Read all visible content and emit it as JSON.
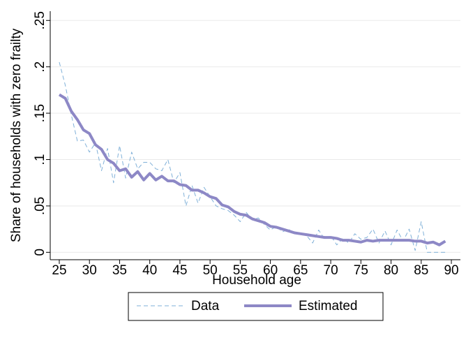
{
  "chart_data": {
    "type": "line",
    "x_label": "Household age",
    "y_label": "Share of households with zero frailty",
    "x": [
      25,
      26,
      27,
      28,
      29,
      30,
      31,
      32,
      33,
      34,
      35,
      36,
      37,
      38,
      39,
      40,
      41,
      42,
      43,
      44,
      45,
      46,
      47,
      48,
      49,
      50,
      51,
      52,
      53,
      54,
      55,
      56,
      57,
      58,
      59,
      60,
      61,
      62,
      63,
      64,
      65,
      66,
      67,
      68,
      69,
      70,
      71,
      72,
      73,
      74,
      75,
      76,
      77,
      78,
      79,
      80,
      81,
      82,
      83,
      84,
      85,
      86,
      87,
      88,
      89
    ],
    "series": [
      {
        "name": "Data",
        "color": "#7fb0d8",
        "dashed": true,
        "values": [
          0.205,
          0.18,
          0.148,
          0.12,
          0.121,
          0.108,
          0.118,
          0.088,
          0.112,
          0.075,
          0.115,
          0.08,
          0.108,
          0.09,
          0.097,
          0.097,
          0.09,
          0.088,
          0.1,
          0.075,
          0.086,
          0.05,
          0.072,
          0.053,
          0.07,
          0.06,
          0.05,
          0.047,
          0.045,
          0.04,
          0.033,
          0.043,
          0.035,
          0.037,
          0.03,
          0.024,
          0.028,
          0.022,
          0.025,
          0.02,
          0.02,
          0.018,
          0.01,
          0.024,
          0.014,
          0.018,
          0.008,
          0.015,
          0.01,
          0.02,
          0.014,
          0.016,
          0.025,
          0.01,
          0.023,
          0.008,
          0.024,
          0.012,
          0.025,
          0.002,
          0.033,
          0,
          0,
          0,
          0
        ]
      },
      {
        "name": "Estimated",
        "color": "#8d88c6",
        "dashed": false,
        "values": [
          0.17,
          0.166,
          0.152,
          0.143,
          0.132,
          0.128,
          0.116,
          0.111,
          0.1,
          0.096,
          0.088,
          0.09,
          0.081,
          0.087,
          0.078,
          0.085,
          0.078,
          0.082,
          0.077,
          0.077,
          0.073,
          0.072,
          0.067,
          0.067,
          0.064,
          0.06,
          0.058,
          0.051,
          0.049,
          0.044,
          0.041,
          0.04,
          0.036,
          0.034,
          0.032,
          0.028,
          0.027,
          0.025,
          0.023,
          0.021,
          0.02,
          0.019,
          0.018,
          0.017,
          0.016,
          0.016,
          0.015,
          0.013,
          0.013,
          0.012,
          0.011,
          0.013,
          0.012,
          0.013,
          0.013,
          0.013,
          0.013,
          0.013,
          0.013,
          0.012,
          0.012,
          0.01,
          0.011,
          0.008,
          0.012
        ]
      }
    ],
    "xlim": [
      23.5,
      91.5
    ],
    "ylim": [
      -0.008,
      0.26
    ],
    "xticks": [
      25,
      30,
      35,
      40,
      45,
      50,
      55,
      60,
      65,
      70,
      75,
      80,
      85,
      90
    ],
    "yticks": [
      0,
      {
        "value": 0.05,
        "label": ".05"
      },
      {
        "value": 0.1,
        "label": ".1"
      },
      {
        "value": 0.15,
        "label": ".15"
      },
      {
        "value": 0.2,
        "label": ".2"
      },
      {
        "value": 0.25,
        "label": ".25"
      }
    ],
    "grid": true,
    "legend": "bottom"
  }
}
